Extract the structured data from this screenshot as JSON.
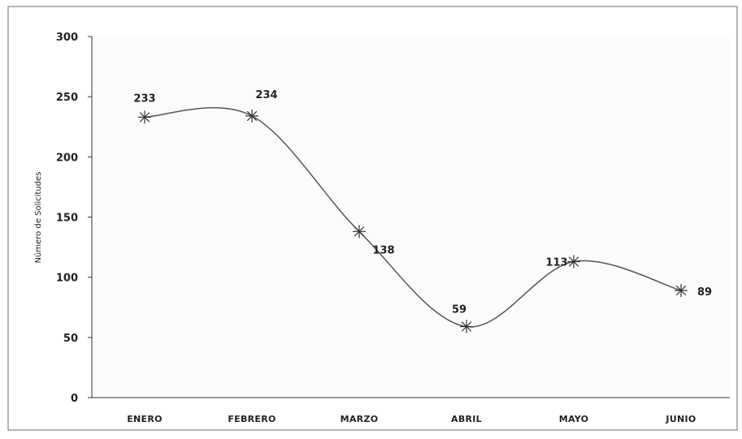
{
  "chart_data": {
    "type": "line",
    "title": "",
    "xlabel": "",
    "ylabel": "Número de Solicitudes",
    "categories": [
      "ENERO",
      "FEBRERO",
      "MARZO",
      "ABRIL",
      "MAYO",
      "JUNIO"
    ],
    "values": [
      233,
      234,
      138,
      59,
      113,
      89
    ],
    "data_labels": [
      "233",
      "234",
      "138",
      "59",
      "113",
      "89"
    ],
    "yticks": [
      "0",
      "50",
      "100",
      "150",
      "200",
      "250",
      "300"
    ],
    "ylim": [
      0,
      300
    ],
    "grid": false,
    "smooth": true,
    "marker": "asterisk",
    "line_color": "#555555",
    "background": "#ffffff"
  }
}
